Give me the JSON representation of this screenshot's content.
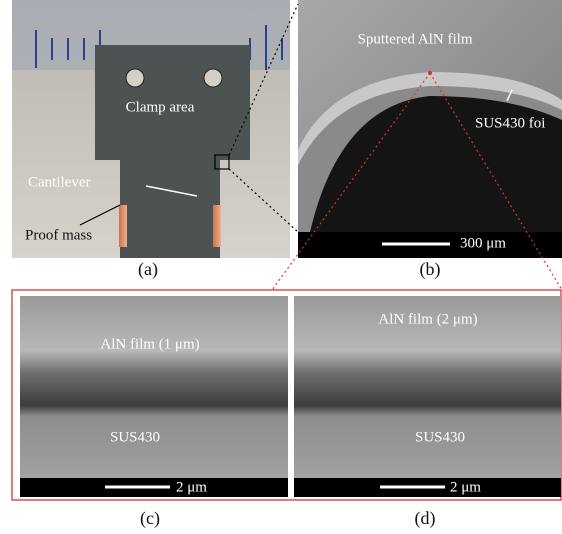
{
  "panels": [
    {
      "label": "(a)",
      "annotations": [
        "Clamp area",
        "Cantilever",
        "Proof mass"
      ]
    },
    {
      "label": "(b)",
      "annotations": [
        "Sputtered AlN film",
        "SUS430 foi"
      ],
      "scale_bar": "300 μm"
    },
    {
      "label": "(c)",
      "annotations": [
        "AlN film (1 μm)",
        "SUS430"
      ],
      "scale_bar": "2 μm"
    },
    {
      "label": "(d)",
      "annotations": [
        "AlN film (2 μm)",
        "SUS430"
      ],
      "scale_bar": "2 μm"
    }
  ]
}
